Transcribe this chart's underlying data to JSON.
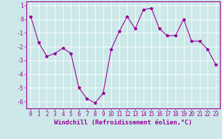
{
  "x": [
    0,
    1,
    2,
    3,
    4,
    5,
    6,
    7,
    8,
    9,
    10,
    11,
    12,
    13,
    14,
    15,
    16,
    17,
    18,
    19,
    20,
    21,
    22,
    23
  ],
  "y": [
    0.2,
    -1.7,
    -2.7,
    -2.5,
    -2.1,
    -2.5,
    -5.0,
    -5.8,
    -6.1,
    -5.4,
    -2.2,
    -0.9,
    0.2,
    -0.7,
    0.7,
    0.8,
    -0.7,
    -1.2,
    -1.2,
    0.0,
    -1.6,
    -1.6,
    -2.2,
    -3.3
  ],
  "line_color": "#990099",
  "marker": "*",
  "marker_size": 3,
  "bg_color": "#cce8e8",
  "grid_color": "#b0d8d8",
  "xlabel": "Windchill (Refroidissement éolien,°C)",
  "xlabel_color": "#990099",
  "tick_color": "#990099",
  "spine_color": "#990099",
  "ylim": [
    -6.5,
    1.3
  ],
  "xlim": [
    -0.5,
    23.5
  ],
  "yticks": [
    -6,
    -5,
    -4,
    -3,
    -2,
    -1,
    0,
    1
  ],
  "xticks": [
    0,
    1,
    2,
    3,
    4,
    5,
    6,
    7,
    8,
    9,
    10,
    11,
    12,
    13,
    14,
    15,
    16,
    17,
    18,
    19,
    20,
    21,
    22,
    23
  ],
  "tick_fontsize": 5.5,
  "xlabel_fontsize": 6.5,
  "line_width": 0.8
}
